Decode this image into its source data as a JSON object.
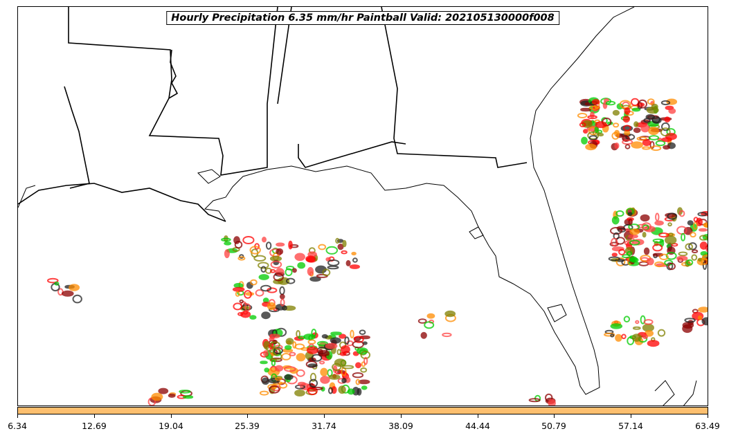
{
  "title": "Hourly Precipitation 6.35 mm/hr Paintball Valid: 202105130000f008",
  "colorbar": {
    "color": "#fdbf6f",
    "ticks": [
      "6.34",
      "12.69",
      "19.04",
      "25.39",
      "31.74",
      "38.09",
      "44.44",
      "50.79",
      "57.14",
      "63.49"
    ]
  },
  "map": {
    "region": "Gulf of Mexico / Southeastern United States",
    "paintball_colors": [
      "#ff0000",
      "#ff8c00",
      "#8b0000",
      "#808000",
      "#00cc00",
      "#222222",
      "#ff4040"
    ]
  }
}
